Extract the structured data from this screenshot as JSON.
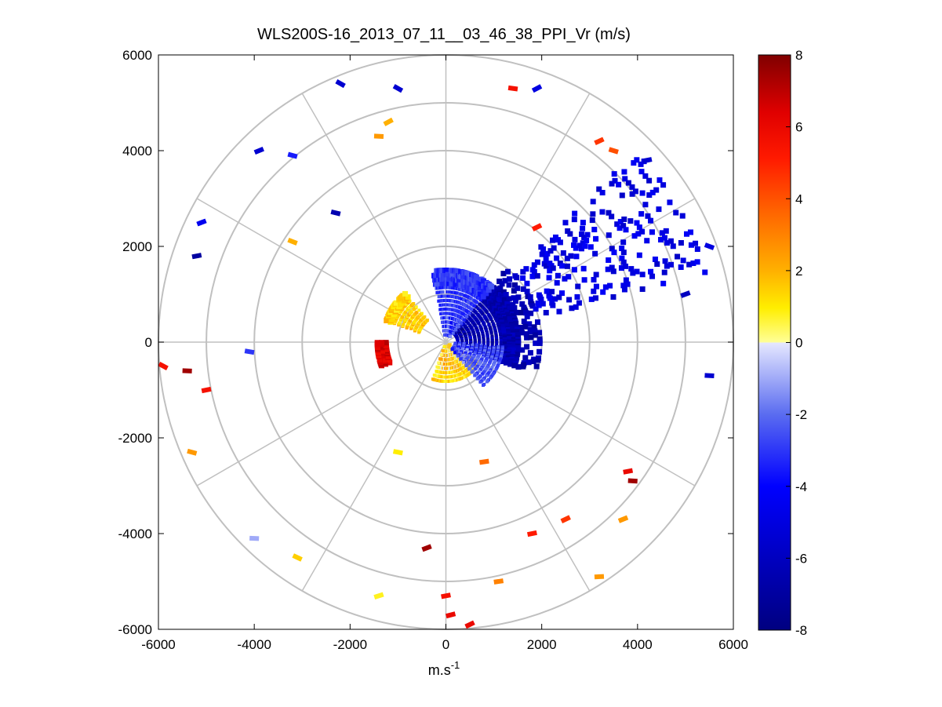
{
  "chart_data": {
    "type": "scatter",
    "subtype": "polar-ppi-radial-velocity",
    "title": "WLS200S-16_2013_07_11__03_46_38_PPI_Vr (m/s)",
    "xlabel": "m.s",
    "xlabel_superscript": "-1",
    "ylabel": "",
    "xlim": [
      -6000,
      6000
    ],
    "ylim": [
      -6000,
      6000
    ],
    "x_ticks": [
      -6000,
      -4000,
      -2000,
      0,
      2000,
      4000,
      6000
    ],
    "y_ticks": [
      -6000,
      -4000,
      -2000,
      0,
      2000,
      4000,
      6000
    ],
    "x_tick_labels": [
      "-6000",
      "-4000",
      "-2000",
      "0",
      "2000",
      "4000",
      "6000"
    ],
    "y_tick_labels": [
      "-6000",
      "-4000",
      "-2000",
      "0",
      "2000",
      "4000",
      "6000"
    ],
    "range_rings": [
      1000,
      2000,
      3000,
      4000,
      5000,
      6000
    ],
    "spokes_deg": [
      0,
      30,
      60,
      90,
      120,
      150,
      180,
      210,
      240,
      270,
      300,
      330
    ],
    "colorbar": {
      "min": -8,
      "max": 8,
      "ticks": [
        8,
        6,
        4,
        2,
        0,
        -2,
        -4,
        -6,
        -8
      ],
      "tick_labels": [
        "8",
        "6",
        "4",
        "2",
        "0",
        "-2",
        "-4",
        "-6",
        "-8"
      ]
    },
    "sectors": [
      {
        "name": "near-northeast-receding",
        "az_from": 40,
        "az_to": 110,
        "r_from": 250,
        "r_to": 2000,
        "velocity": -6.5
      },
      {
        "name": "northeast-spotty",
        "az_from": 45,
        "az_to": 75,
        "r_from": 2000,
        "r_to": 5600,
        "velocity": -5.0
      },
      {
        "name": "north-near-blue",
        "az_from": 350,
        "az_to": 40,
        "r_from": 150,
        "r_to": 1500,
        "velocity": -3.0
      },
      {
        "name": "northwest-yellow",
        "az_from": 290,
        "az_to": 320,
        "r_from": 600,
        "r_to": 1400,
        "velocity": 1.5
      },
      {
        "name": "southeast-yellow",
        "az_from": 120,
        "az_to": 200,
        "r_from": 100,
        "r_to": 900,
        "velocity": 1.3
      },
      {
        "name": "west-red-arc",
        "az_from": 250,
        "az_to": 270,
        "r_from": 1250,
        "r_to": 1500,
        "velocity": 6.5
      },
      {
        "name": "east-near-gradient",
        "az_from": 95,
        "az_to": 140,
        "r_from": 200,
        "r_to": 1200,
        "velocity": -2.5
      }
    ],
    "far_samples": [
      {
        "x": -2200,
        "y": 5400,
        "v": -5.5
      },
      {
        "x": -1000,
        "y": 5300,
        "v": -5.5
      },
      {
        "x": 1400,
        "y": 5300,
        "v": 5.5
      },
      {
        "x": 1900,
        "y": 5300,
        "v": -5.0
      },
      {
        "x": -1400,
        "y": 4300,
        "v": 2.5
      },
      {
        "x": -1200,
        "y": 4600,
        "v": 2.0
      },
      {
        "x": -3900,
        "y": 4000,
        "v": -5.5
      },
      {
        "x": -3200,
        "y": 3900,
        "v": -3.5
      },
      {
        "x": 3200,
        "y": 4200,
        "v": 4.5
      },
      {
        "x": 3500,
        "y": 4000,
        "v": 4.0
      },
      {
        "x": 4200,
        "y": 3800,
        "v": -5.5
      },
      {
        "x": -5200,
        "y": 1800,
        "v": -7.0
      },
      {
        "x": -5100,
        "y": 2500,
        "v": -4.5
      },
      {
        "x": -3200,
        "y": 2100,
        "v": 2.0
      },
      {
        "x": -2300,
        "y": 2700,
        "v": -6.5
      },
      {
        "x": 1900,
        "y": 2400,
        "v": 5.0
      },
      {
        "x": -5900,
        "y": -500,
        "v": 5.5
      },
      {
        "x": -5400,
        "y": -600,
        "v": 7.5
      },
      {
        "x": -5000,
        "y": -1000,
        "v": 5.5
      },
      {
        "x": -5300,
        "y": -2300,
        "v": 2.5
      },
      {
        "x": -4000,
        "y": -4100,
        "v": -1.0
      },
      {
        "x": -3100,
        "y": -4500,
        "v": 1.5
      },
      {
        "x": -1400,
        "y": -5300,
        "v": 0.8
      },
      {
        "x": -400,
        "y": -4300,
        "v": 7.5
      },
      {
        "x": 0,
        "y": -5300,
        "v": 5.5
      },
      {
        "x": 100,
        "y": -5700,
        "v": 6.0
      },
      {
        "x": 500,
        "y": -5900,
        "v": 6.0
      },
      {
        "x": 1800,
        "y": -4000,
        "v": 5.0
      },
      {
        "x": 2500,
        "y": -3700,
        "v": 4.5
      },
      {
        "x": 3700,
        "y": -3700,
        "v": 2.5
      },
      {
        "x": 3900,
        "y": -2900,
        "v": 7.5
      },
      {
        "x": 3800,
        "y": -2700,
        "v": 6.0
      },
      {
        "x": 3200,
        "y": -4900,
        "v": 2.5
      },
      {
        "x": 1100,
        "y": -5000,
        "v": 3.0
      },
      {
        "x": 5500,
        "y": -700,
        "v": -5.5
      },
      {
        "x": 5000,
        "y": 1000,
        "v": -6.0
      },
      {
        "x": 5500,
        "y": 2000,
        "v": -5.0
      },
      {
        "x": -4100,
        "y": -200,
        "v": -3.0
      },
      {
        "x": -1000,
        "y": -2300,
        "v": 1.0
      },
      {
        "x": 800,
        "y": -2500,
        "v": 3.5
      }
    ]
  }
}
